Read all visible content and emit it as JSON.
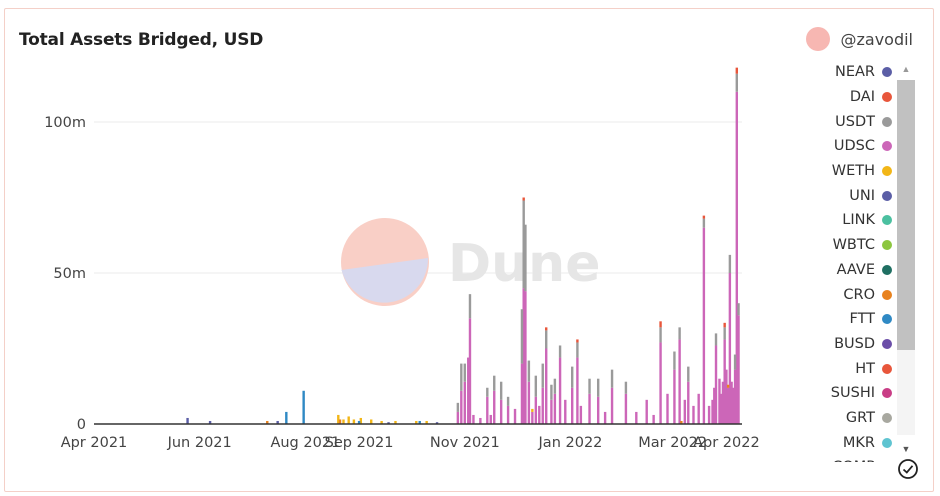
{
  "header": {
    "title": "Total Assets Bridged, USD",
    "author": "@zavodil"
  },
  "watermark": "Dune",
  "legend": [
    {
      "name": "NEAR",
      "color": "#5b5ea6"
    },
    {
      "name": "DAI",
      "color": "#e8563b"
    },
    {
      "name": "USDT",
      "color": "#9a9a9a"
    },
    {
      "name": "UDSC",
      "color": "#cc66b8"
    },
    {
      "name": "WETH",
      "color": "#f2b617"
    },
    {
      "name": "UNI",
      "color": "#5b5ea6"
    },
    {
      "name": "LINK",
      "color": "#4bc0a0"
    },
    {
      "name": "WBTC",
      "color": "#8cc63f"
    },
    {
      "name": "AAVE",
      "color": "#1f6f62"
    },
    {
      "name": "CRO",
      "color": "#e8821e"
    },
    {
      "name": "FTT",
      "color": "#2f89c4"
    },
    {
      "name": "BUSD",
      "color": "#6b4ea8"
    },
    {
      "name": "HT",
      "color": "#e8563b"
    },
    {
      "name": "SUSHI",
      "color": "#c93d86"
    },
    {
      "name": "GRT",
      "color": "#a8a8a0"
    },
    {
      "name": "MKR",
      "color": "#5fc4d1"
    },
    {
      "name": "COMP",
      "color": "#f2c14e"
    }
  ],
  "chart_data": {
    "type": "bar",
    "stacked": true,
    "title": "Total Assets Bridged, USD",
    "xlabel": "",
    "ylabel": "",
    "ylim": [
      0,
      120000000
    ],
    "y_ticks": [
      {
        "value": 0,
        "label": "0"
      },
      {
        "value": 50000000,
        "label": "50m"
      },
      {
        "value": 100000000,
        "label": "100m"
      }
    ],
    "x_range": [
      "2021-04-01",
      "2022-04-10"
    ],
    "x_ticks": [
      {
        "date": "2021-04-01",
        "label": "Apr 2021"
      },
      {
        "date": "2021-06-01",
        "label": "Jun 2021"
      },
      {
        "date": "2021-08-01",
        "label": "Aug 2021"
      },
      {
        "date": "2021-09-01",
        "label": "Sep 2021"
      },
      {
        "date": "2021-11-01",
        "label": "Nov 2021"
      },
      {
        "date": "2022-01-01",
        "label": "Jan 2022"
      },
      {
        "date": "2022-03-01",
        "label": "Mar 2022"
      },
      {
        "date": "2022-04-01",
        "label": "Apr 2022"
      }
    ],
    "grid": true,
    "legend_position": "right",
    "series": [
      {
        "name": "UDSC",
        "color": "#cc66b8",
        "points": [
          [
            "2021-10-28",
            4000000
          ],
          [
            "2021-10-30",
            11000000
          ],
          [
            "2021-11-01",
            14000000
          ],
          [
            "2021-11-03",
            22000000
          ],
          [
            "2021-11-04",
            35000000
          ],
          [
            "2021-11-06",
            3000000
          ],
          [
            "2021-11-10",
            2000000
          ],
          [
            "2021-11-14",
            9000000
          ],
          [
            "2021-11-16",
            3000000
          ],
          [
            "2021-11-18",
            11000000
          ],
          [
            "2021-11-22",
            8000000
          ],
          [
            "2021-11-26",
            6000000
          ],
          [
            "2021-11-30",
            5000000
          ],
          [
            "2021-12-04",
            20000000
          ],
          [
            "2021-12-05",
            45000000
          ],
          [
            "2021-12-06",
            44000000
          ],
          [
            "2021-12-08",
            14000000
          ],
          [
            "2021-12-10",
            4000000
          ],
          [
            "2021-12-12",
            9000000
          ],
          [
            "2021-12-14",
            6000000
          ],
          [
            "2021-12-16",
            12000000
          ],
          [
            "2021-12-18",
            25000000
          ],
          [
            "2021-12-21",
            8000000
          ],
          [
            "2021-12-23",
            10000000
          ],
          [
            "2021-12-26",
            22000000
          ],
          [
            "2021-12-29",
            8000000
          ],
          [
            "2022-01-02",
            12000000
          ],
          [
            "2022-01-05",
            22000000
          ],
          [
            "2022-01-07",
            6000000
          ],
          [
            "2022-01-12",
            10000000
          ],
          [
            "2022-01-17",
            9000000
          ],
          [
            "2022-01-21",
            4000000
          ],
          [
            "2022-01-25",
            12000000
          ],
          [
            "2022-02-02",
            10000000
          ],
          [
            "2022-02-08",
            4000000
          ],
          [
            "2022-02-14",
            8000000
          ],
          [
            "2022-02-18",
            3000000
          ],
          [
            "2022-02-22",
            27000000
          ],
          [
            "2022-02-26",
            10000000
          ],
          [
            "2022-03-02",
            18000000
          ],
          [
            "2022-03-05",
            28000000
          ],
          [
            "2022-03-08",
            8000000
          ],
          [
            "2022-03-10",
            14000000
          ],
          [
            "2022-03-13",
            6000000
          ],
          [
            "2022-03-16",
            10000000
          ],
          [
            "2022-03-19",
            65000000
          ],
          [
            "2022-03-22",
            6000000
          ],
          [
            "2022-03-24",
            8000000
          ],
          [
            "2022-03-25",
            12000000
          ],
          [
            "2022-03-26",
            26000000
          ],
          [
            "2022-03-28",
            15000000
          ],
          [
            "2022-03-29",
            10000000
          ],
          [
            "2022-03-30",
            14000000
          ],
          [
            "2022-03-31",
            28000000
          ],
          [
            "2022-04-01",
            18000000
          ],
          [
            "2022-04-02",
            12000000
          ],
          [
            "2022-04-03",
            50000000
          ],
          [
            "2022-04-04",
            14000000
          ],
          [
            "2022-04-05",
            12000000
          ],
          [
            "2022-04-06",
            18000000
          ],
          [
            "2022-04-07",
            110000000
          ],
          [
            "2022-04-08",
            36000000
          ]
        ]
      },
      {
        "name": "USDT",
        "color": "#9a9a9a",
        "points": [
          [
            "2021-10-28",
            3000000
          ],
          [
            "2021-10-30",
            9000000
          ],
          [
            "2021-11-01",
            6000000
          ],
          [
            "2021-11-04",
            8000000
          ],
          [
            "2021-11-14",
            3000000
          ],
          [
            "2021-11-18",
            5000000
          ],
          [
            "2021-11-22",
            6000000
          ],
          [
            "2021-11-26",
            3000000
          ],
          [
            "2021-12-04",
            18000000
          ],
          [
            "2021-12-05",
            29000000
          ],
          [
            "2021-12-06",
            22000000
          ],
          [
            "2021-12-08",
            7000000
          ],
          [
            "2021-12-12",
            7000000
          ],
          [
            "2021-12-16",
            8000000
          ],
          [
            "2021-12-18",
            6000000
          ],
          [
            "2021-12-21",
            5000000
          ],
          [
            "2021-12-23",
            5000000
          ],
          [
            "2021-12-26",
            4000000
          ],
          [
            "2022-01-02",
            7000000
          ],
          [
            "2022-01-05",
            5000000
          ],
          [
            "2022-01-12",
            5000000
          ],
          [
            "2022-01-17",
            6000000
          ],
          [
            "2022-01-25",
            6000000
          ],
          [
            "2022-02-02",
            4000000
          ],
          [
            "2022-02-22",
            5000000
          ],
          [
            "2022-03-02",
            6000000
          ],
          [
            "2022-03-05",
            4000000
          ],
          [
            "2022-03-10",
            5000000
          ],
          [
            "2022-03-19",
            3000000
          ],
          [
            "2022-03-26",
            4000000
          ],
          [
            "2022-03-31",
            4000000
          ],
          [
            "2022-04-03",
            6000000
          ],
          [
            "2022-04-06",
            5000000
          ],
          [
            "2022-04-07",
            6000000
          ],
          [
            "2022-04-08",
            4000000
          ]
        ]
      },
      {
        "name": "DAI",
        "color": "#e8563b",
        "points": [
          [
            "2021-12-05",
            1000000
          ],
          [
            "2021-12-18",
            1000000
          ],
          [
            "2022-01-05",
            1000000
          ],
          [
            "2022-02-22",
            2000000
          ],
          [
            "2022-03-19",
            1000000
          ],
          [
            "2022-03-31",
            1500000
          ],
          [
            "2022-04-07",
            2000000
          ]
        ]
      },
      {
        "name": "WETH",
        "color": "#f2b617",
        "points": [
          [
            "2021-08-20",
            3000000
          ],
          [
            "2021-08-23",
            1500000
          ],
          [
            "2021-08-26",
            2500000
          ],
          [
            "2021-08-29",
            1500000
          ],
          [
            "2021-09-02",
            2000000
          ],
          [
            "2021-09-08",
            1500000
          ],
          [
            "2021-09-14",
            1000000
          ],
          [
            "2021-09-22",
            1000000
          ],
          [
            "2021-10-04",
            1000000
          ],
          [
            "2021-10-10",
            1000000
          ],
          [
            "2021-12-10",
            1000000
          ]
        ]
      },
      {
        "name": "NEAR",
        "color": "#5b5ea6",
        "points": [
          [
            "2021-05-25",
            2000000
          ],
          [
            "2021-06-07",
            1000000
          ],
          [
            "2021-07-16",
            1000000
          ],
          [
            "2021-09-18",
            600000
          ],
          [
            "2021-10-16",
            600000
          ]
        ]
      },
      {
        "name": "FTT",
        "color": "#2f89c4",
        "points": [
          [
            "2021-07-21",
            4000000
          ],
          [
            "2021-07-31",
            11000000
          ],
          [
            "2021-09-01",
            1000000
          ],
          [
            "2021-10-06",
            1000000
          ]
        ]
      },
      {
        "name": "CRO",
        "color": "#e8821e",
        "points": [
          [
            "2021-07-10",
            1000000
          ],
          [
            "2021-08-21",
            1500000
          ],
          [
            "2022-03-06",
            1000000
          ],
          [
            "2022-04-02",
            1000000
          ]
        ]
      }
    ]
  }
}
